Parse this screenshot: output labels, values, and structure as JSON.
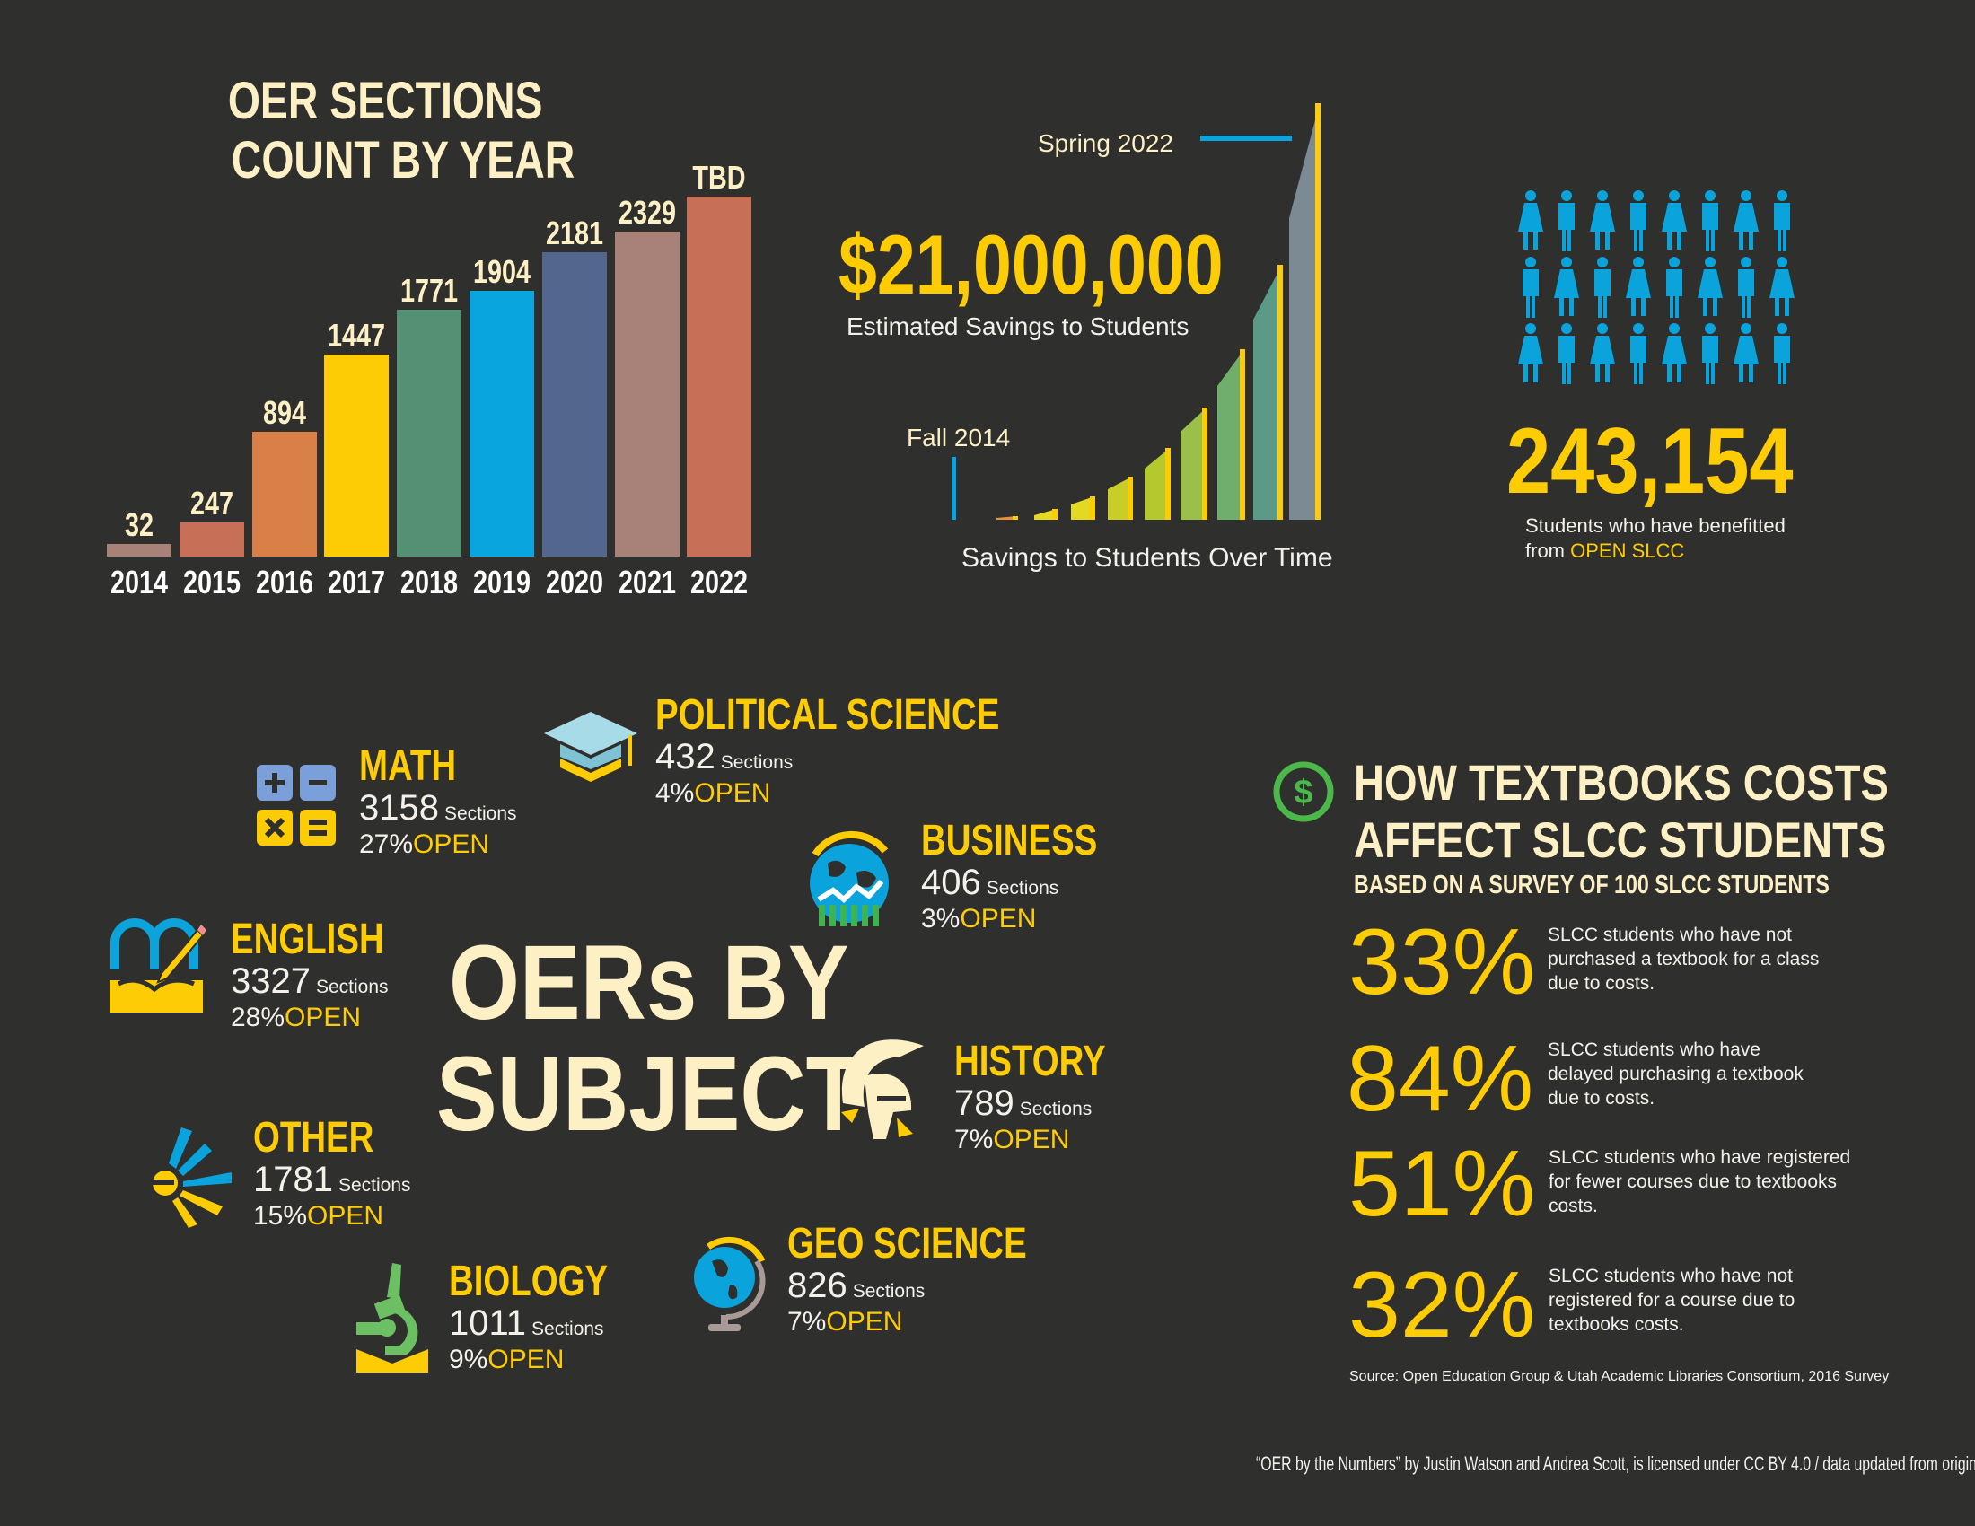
{
  "chart_data": {
    "type": "bar",
    "title": "OER SECTIONS COUNT BY YEAR",
    "title_lines": [
      "OER SECTIONS",
      "COUNT BY YEAR"
    ],
    "categories": [
      "2014",
      "2015",
      "2016",
      "2017",
      "2018",
      "2019",
      "2020",
      "2021",
      "2022"
    ],
    "values": [
      32,
      247,
      894,
      1447,
      1771,
      1904,
      2181,
      2329,
      null
    ],
    "data_labels": [
      "32",
      "247",
      "894",
      "1447",
      "1771",
      "1904",
      "2181",
      "2329",
      "TBD"
    ],
    "colors": [
      "#a88278",
      "#c86f58",
      "#d97f48",
      "#fecc05",
      "#558f74",
      "#08a5df",
      "#53668d",
      "#a88278",
      "#c86f58"
    ],
    "xlabel": "",
    "ylabel": "",
    "grid": false
  },
  "savings": {
    "amount": "$21,000,000",
    "amount_label": "Estimated Savings to Students",
    "start_label": "Fall 2014",
    "end_label": "Spring 2022",
    "chart_caption": "Savings to Students Over Time"
  },
  "students": {
    "count": "243,154",
    "label_line1": "Students who have benefitted",
    "label_from": "from",
    "label_brand": "OPEN SLCC",
    "icon": "person-icon",
    "icon_color": "#0aa3dc"
  },
  "subjects": {
    "title_line1": "OERs BY",
    "title_line2": "SUBJECT",
    "sections_word": "Sections",
    "open_word": "OPEN",
    "items": [
      {
        "name": "MATH",
        "count": "3158",
        "pct": "27%",
        "icon": "calculator-icon"
      },
      {
        "name": "POLITICAL SCIENCE",
        "count": "432",
        "pct": "4%",
        "icon": "graduation-cap-icon"
      },
      {
        "name": "BUSINESS",
        "count": "406",
        "pct": "3%",
        "icon": "globe-growth-icon"
      },
      {
        "name": "ENGLISH",
        "count": "3327",
        "pct": "28%",
        "icon": "book-pencil-icon"
      },
      {
        "name": "HISTORY",
        "count": "789",
        "pct": "7%",
        "icon": "helmet-icon"
      },
      {
        "name": "OTHER",
        "count": "1781",
        "pct": "15%",
        "icon": "burst-icon"
      },
      {
        "name": "GEO SCIENCE",
        "count": "826",
        "pct": "7%",
        "icon": "globe-icon"
      },
      {
        "name": "BIOLOGY",
        "count": "1011",
        "pct": "9%",
        "icon": "microscope-icon"
      }
    ]
  },
  "survey": {
    "icon": "dollar-icon",
    "title_line1": "HOW TEXTBOOKS COSTS",
    "title_line2": "AFFECT SLCC STUDENTS",
    "subtitle": "BASED ON A SURVEY OF 100 SLCC STUDENTS",
    "stats": [
      {
        "pct": "33%",
        "text": "SLCC students who have not purchased a textbook for a class due to costs."
      },
      {
        "pct": "84%",
        "text": "SLCC students who have delayed purchasing a textbook due to costs."
      },
      {
        "pct": "51%",
        "text": "SLCC students who have registered for fewer courses due to textbooks costs."
      },
      {
        "pct": "32%",
        "text": "SLCC students who have not registered for a course due to textbooks costs."
      }
    ],
    "source": "Source: Open Education Group & Utah Academic Libraries Consortium, 2016 Survey"
  },
  "footer": {
    "credit": "“OER by the Numbers” by Justin Watson and Andrea Scott, is licensed under CC BY 4.0 / data updated from original"
  },
  "colors": {
    "background": "#2f2f2e",
    "cream": "#fdf0c4",
    "yellow": "#fecc05",
    "blue": "#0aa3dc",
    "green": "#4cb84c"
  }
}
